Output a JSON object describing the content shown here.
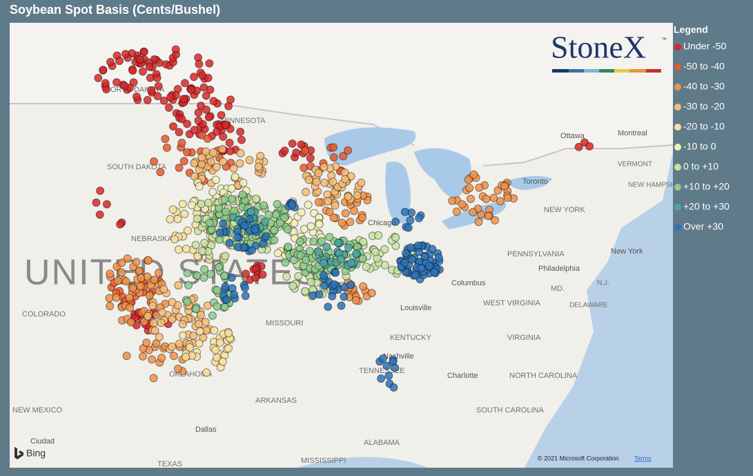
{
  "header": {
    "title": "Soybean Spot Basis (Cents/Bushel)"
  },
  "legend": {
    "title": "Legend",
    "items": [
      {
        "label": "Under -50",
        "color": "#d7282a"
      },
      {
        "label": "-50 to -40",
        "color": "#e65a2e"
      },
      {
        "label": "-40 to -30",
        "color": "#f0904a"
      },
      {
        "label": "-30 to -20",
        "color": "#f6bb74"
      },
      {
        "label": "-20 to -10",
        "color": "#f8e19c"
      },
      {
        "label": "-10 to 0",
        "color": "#f1f0b8"
      },
      {
        "label": "0 to +10",
        "color": "#c8e4a2"
      },
      {
        "label": "+10 to +20",
        "color": "#8ccb8c"
      },
      {
        "label": "+20 to +30",
        "color": "#4da5a0"
      },
      {
        "label": "Over +30",
        "color": "#2b73b7"
      }
    ]
  },
  "logo": {
    "text": "StoneX",
    "mark": "™"
  },
  "map": {
    "labels": [
      "NORTH DAKOTA",
      "MINNESOTA",
      "SOUTH DAKOTA",
      "NEBRASKA",
      "UNITED STATES",
      "COLORADO",
      "MISSOURI",
      "KENTUCKY",
      "TENNESSEE",
      "OKLAHOMA",
      "ARKANSAS",
      "NEW MEXICO",
      "ALABAMA",
      "MISSISSIPPI",
      "TEXAS",
      "Ciudad",
      "Chicago",
      "Columbus",
      "Louisville",
      "Nashville",
      "Charlotte",
      "WEST VIRGINIA",
      "VIRGINIA",
      "NORTH CAROLINA",
      "SOUTH CAROLINA",
      "PENNSYLVANIA",
      "Philadelphia",
      "NEW YORK",
      "New York",
      "VERMONT",
      "NEW HAMPSHIRE",
      "Montreal",
      "Ottawa",
      "Toronto",
      "MD.",
      "DELAWARE",
      "N.J.",
      "Dallas"
    ]
  },
  "attribution": {
    "provider": "Bing",
    "copyright": "© 2021 Microsoft Corporation",
    "terms": "Terms"
  }
}
